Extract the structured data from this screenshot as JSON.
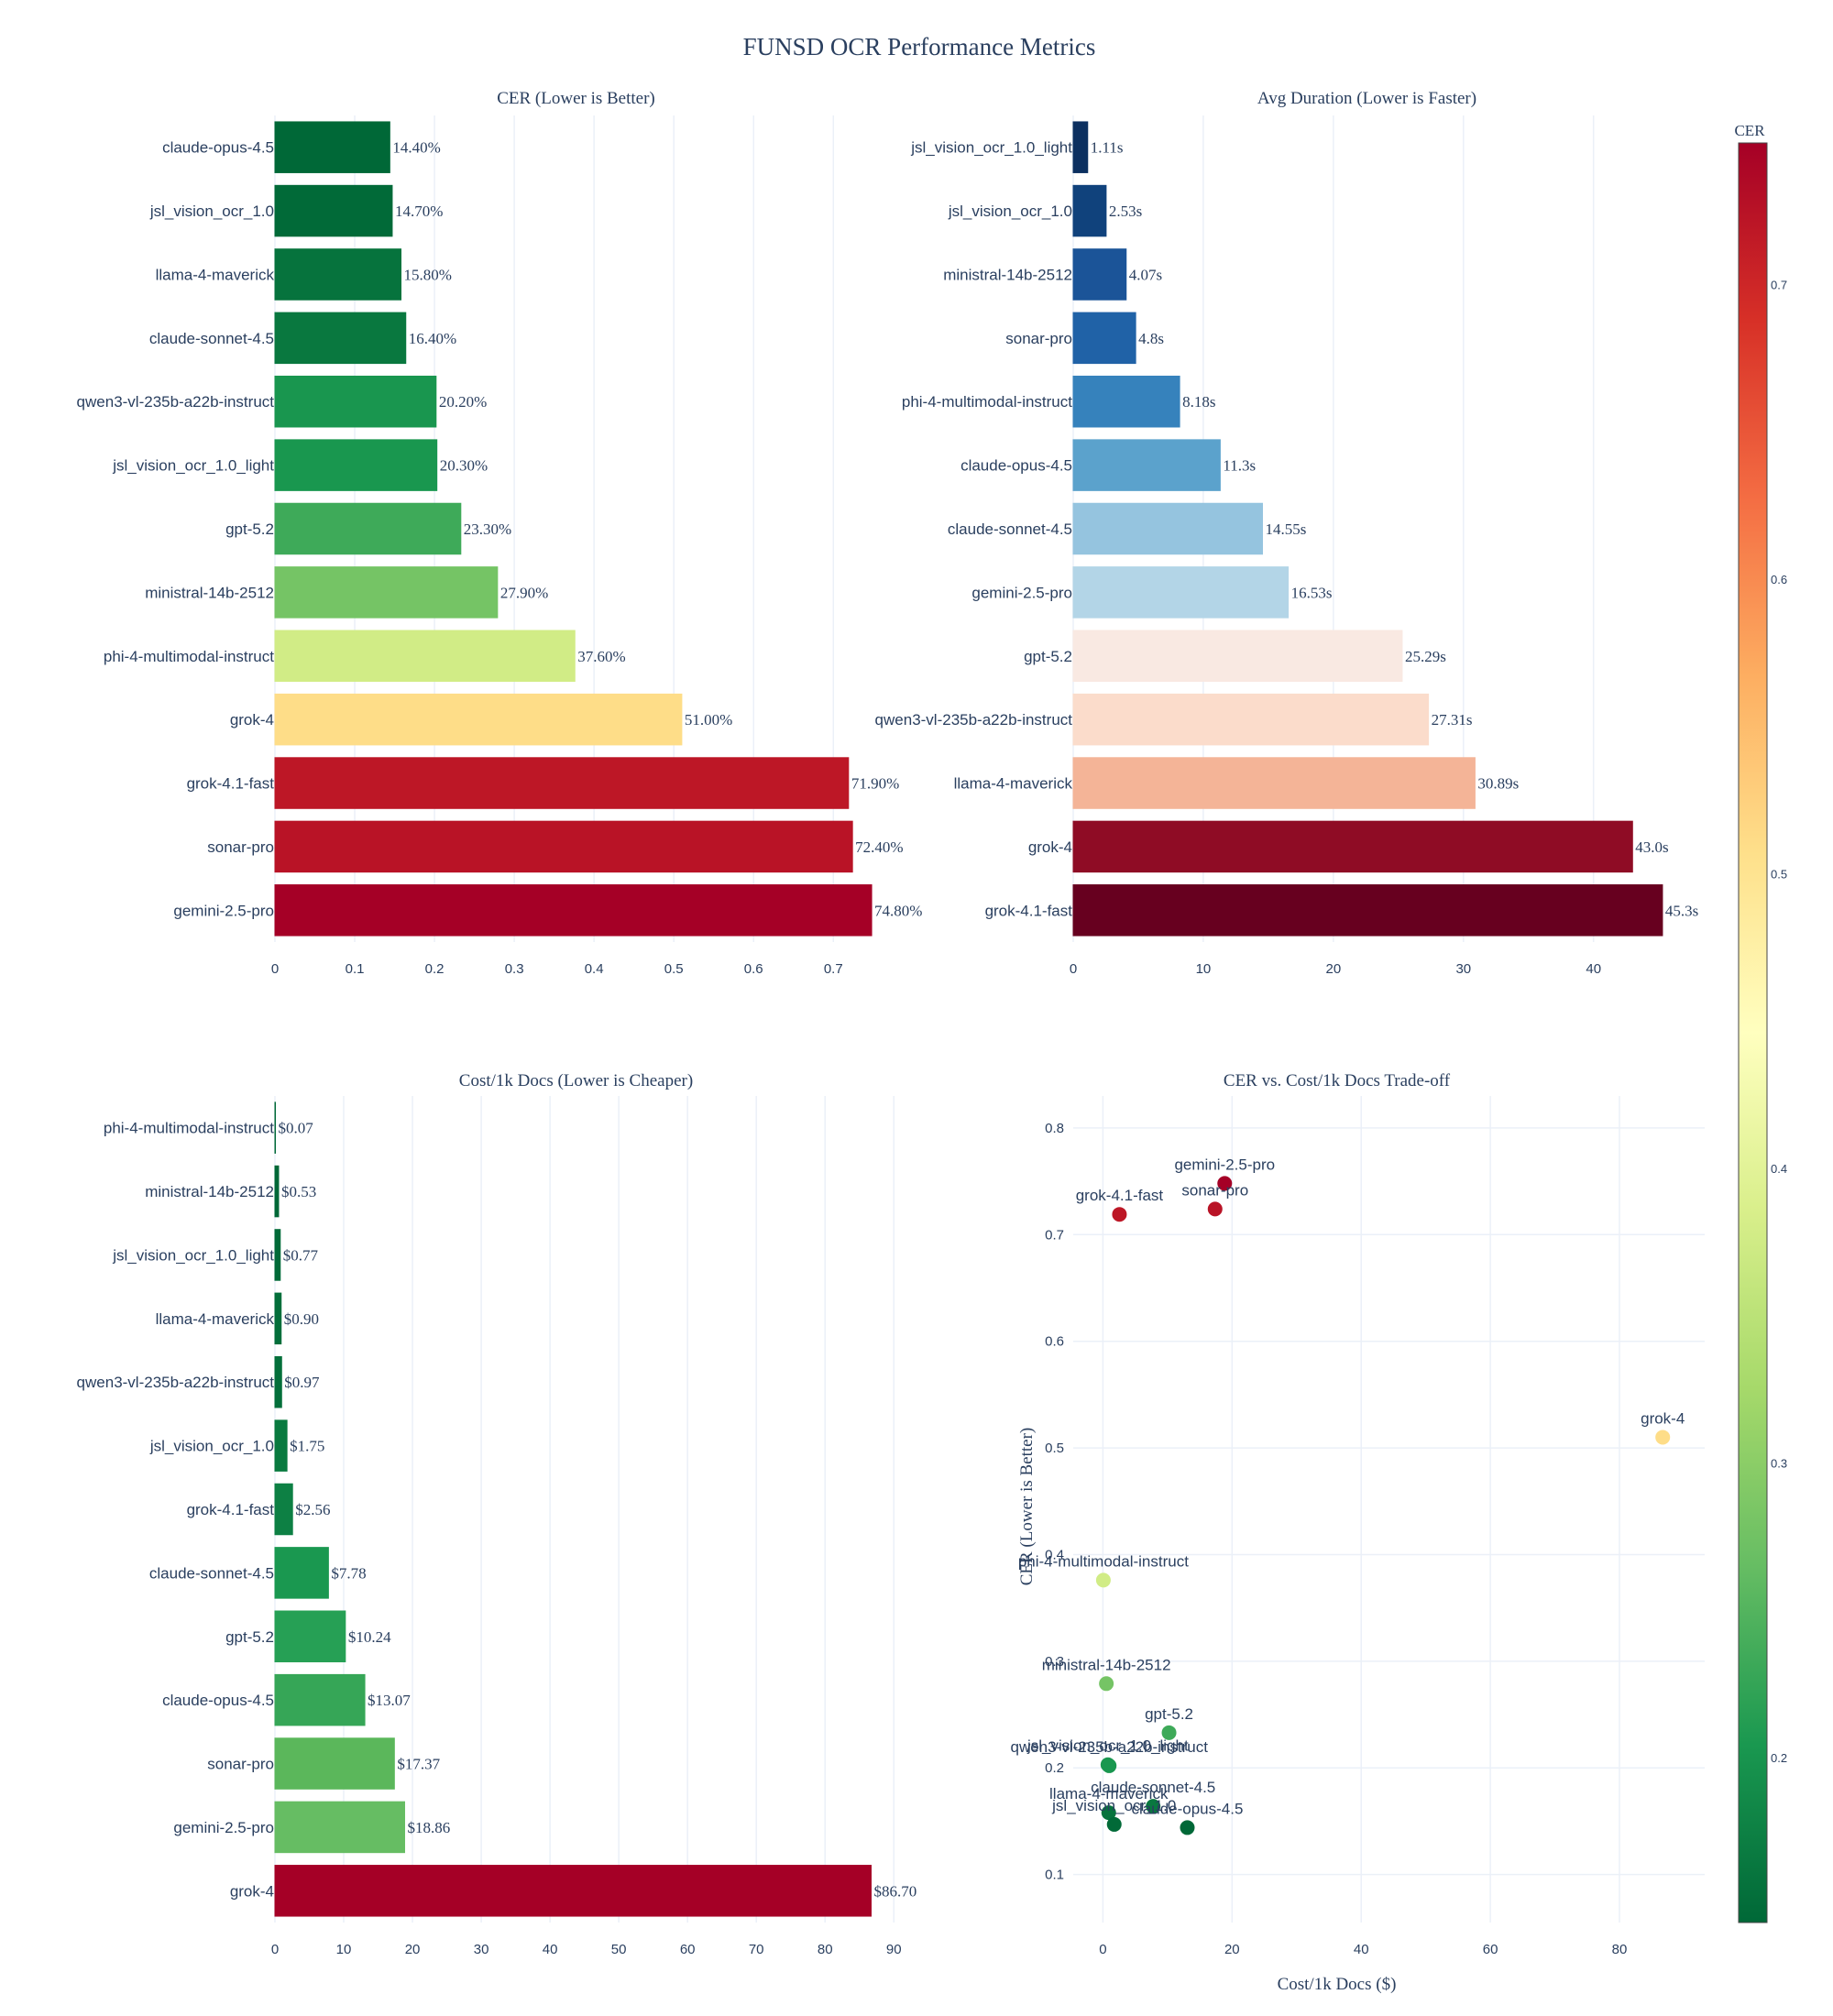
{
  "title": "FUNSD OCR Performance Metrics",
  "colorscale_note": "CER colors: RdYlGn reversed (green = low CER, red = high CER)",
  "chart_data": [
    {
      "id": "cer",
      "type": "bar",
      "orientation": "horizontal",
      "title": "CER (Lower is Better)",
      "xlabel": "",
      "ylabel": "",
      "xlim": [
        0,
        0.787
      ],
      "xticks": [
        0,
        0.1,
        0.2,
        0.3,
        0.4,
        0.5,
        0.6,
        0.7
      ],
      "xtick_labels": [
        "0",
        "0.1",
        "0.2",
        "0.3",
        "0.4",
        "0.5",
        "0.6",
        "0.7"
      ],
      "grid": true,
      "color_by": "cer",
      "categories": [
        "claude-opus-4.5",
        "jsl_vision_ocr_1.0",
        "llama-4-maverick",
        "claude-sonnet-4.5",
        "qwen3-vl-235b-a22b-instruct",
        "jsl_vision_ocr_1.0_light",
        "gpt-5.2",
        "ministral-14b-2512",
        "phi-4-multimodal-instruct",
        "grok-4",
        "grok-4.1-fast",
        "sonar-pro",
        "gemini-2.5-pro"
      ],
      "values": [
        0.144,
        0.147,
        0.158,
        0.164,
        0.202,
        0.203,
        0.233,
        0.279,
        0.376,
        0.51,
        0.719,
        0.724,
        0.748
      ],
      "labels": [
        "14.40%",
        "14.70%",
        "15.80%",
        "16.40%",
        "20.20%",
        "20.30%",
        "23.30%",
        "27.90%",
        "37.60%",
        "51.00%",
        "71.90%",
        "72.40%",
        "74.80%"
      ]
    },
    {
      "id": "duration",
      "type": "bar",
      "orientation": "horizontal",
      "title": "Avg Duration (Lower is Faster)",
      "xlabel": "",
      "ylabel": "",
      "xlim": [
        0,
        47.7
      ],
      "xticks": [
        0,
        10,
        20,
        30,
        40
      ],
      "xtick_labels": [
        "0",
        "10",
        "20",
        "30",
        "40"
      ],
      "grid": true,
      "color_by": "value (RdBu reversed)",
      "categories": [
        "jsl_vision_ocr_1.0_light",
        "jsl_vision_ocr_1.0",
        "ministral-14b-2512",
        "sonar-pro",
        "phi-4-multimodal-instruct",
        "claude-opus-4.5",
        "claude-sonnet-4.5",
        "gemini-2.5-pro",
        "gpt-5.2",
        "qwen3-vl-235b-a22b-instruct",
        "llama-4-maverick",
        "grok-4",
        "grok-4.1-fast"
      ],
      "values": [
        1.11,
        2.53,
        4.07,
        4.8,
        8.18,
        11.3,
        14.55,
        16.53,
        25.29,
        27.31,
        30.89,
        43.0,
        45.3
      ],
      "labels": [
        "1.11s",
        "2.53s",
        "4.07s",
        "4.8s",
        "8.18s",
        "11.3s",
        "14.55s",
        "16.53s",
        "25.29s",
        "27.31s",
        "30.89s",
        "43.0s",
        "45.3s"
      ],
      "colors": [
        "#0c3060",
        "#10427c",
        "#1b5498",
        "#2062a7",
        "#3682bc",
        "#5ba2cc",
        "#95c4df",
        "#b3d5e7",
        "#f9e9e2",
        "#fbdccb",
        "#f4b497",
        "#8f0c25",
        "#67001f"
      ]
    },
    {
      "id": "cost",
      "type": "bar",
      "orientation": "horizontal",
      "title": "Cost/1k Docs (Lower is Cheaper)",
      "xlabel": "",
      "ylabel": "",
      "xlim": [
        0,
        91.3
      ],
      "xticks": [
        0,
        10,
        20,
        30,
        40,
        50,
        60,
        70,
        80,
        90
      ],
      "xtick_labels": [
        "0",
        "10",
        "20",
        "30",
        "40",
        "50",
        "60",
        "70",
        "80",
        "90"
      ],
      "grid": true,
      "color_by": "value (RdYlGn reversed)",
      "categories": [
        "phi-4-multimodal-instruct",
        "ministral-14b-2512",
        "jsl_vision_ocr_1.0_light",
        "llama-4-maverick",
        "qwen3-vl-235b-a22b-instruct",
        "jsl_vision_ocr_1.0",
        "grok-4.1-fast",
        "claude-sonnet-4.5",
        "gpt-5.2",
        "claude-opus-4.5",
        "sonar-pro",
        "gemini-2.5-pro",
        "grok-4"
      ],
      "values": [
        0.07,
        0.53,
        0.77,
        0.9,
        0.97,
        1.75,
        2.56,
        7.78,
        10.24,
        13.07,
        17.37,
        18.86,
        86.7
      ],
      "labels": [
        "$0.07",
        "$0.53",
        "$0.77",
        "$0.90",
        "$0.97",
        "$1.75",
        "$2.56",
        "$7.78",
        "$10.24",
        "$13.07",
        "$17.37",
        "$18.86",
        "$86.70"
      ],
      "colors": [
        "#006837",
        "#006837",
        "#016a38",
        "#036e3a",
        "#046f3b",
        "#097a3f",
        "#0d8044",
        "#1a9850",
        "#26a055",
        "#36a657",
        "#5bb75b",
        "#66bd63",
        "#a50026"
      ]
    },
    {
      "id": "tradeoff",
      "type": "scatter",
      "title": "CER vs. Cost/1k Docs Trade-off",
      "xlabel": "Cost/1k Docs ($)",
      "ylabel": "CER (Lower is Better)",
      "xlim": [
        -4.6,
        93.2
      ],
      "ylim": [
        0.055,
        0.83
      ],
      "xticks": [
        0,
        20,
        40,
        60,
        80
      ],
      "xtick_labels": [
        "0",
        "20",
        "40",
        "60",
        "80"
      ],
      "yticks": [
        0.1,
        0.2,
        0.3,
        0.4,
        0.5,
        0.6,
        0.7,
        0.8
      ],
      "ytick_labels": [
        "0.1",
        "0.2",
        "0.3",
        "0.4",
        "0.5",
        "0.6",
        "0.7",
        "0.8"
      ],
      "grid": true,
      "color_by": "cer",
      "points": [
        {
          "name": "gemini-2.5-pro",
          "x": 18.86,
          "y": 0.748
        },
        {
          "name": "sonar-pro",
          "x": 17.37,
          "y": 0.724
        },
        {
          "name": "grok-4.1-fast",
          "x": 2.56,
          "y": 0.719
        },
        {
          "name": "grok-4",
          "x": 86.7,
          "y": 0.51
        },
        {
          "name": "phi-4-multimodal-instruct",
          "x": 0.07,
          "y": 0.376
        },
        {
          "name": "ministral-14b-2512",
          "x": 0.53,
          "y": 0.279
        },
        {
          "name": "gpt-5.2",
          "x": 10.24,
          "y": 0.233
        },
        {
          "name": "qwen3-vl-235b-a22b-instruct",
          "x": 0.97,
          "y": 0.202
        },
        {
          "name": "jsl_vision_ocr_1.0_light",
          "x": 0.77,
          "y": 0.203
        },
        {
          "name": "claude-sonnet-4.5",
          "x": 7.78,
          "y": 0.164
        },
        {
          "name": "llama-4-maverick",
          "x": 0.9,
          "y": 0.158
        },
        {
          "name": "jsl_vision_ocr_1.0",
          "x": 1.75,
          "y": 0.147
        },
        {
          "name": "claude-opus-4.5",
          "x": 13.07,
          "y": 0.144
        }
      ]
    }
  ],
  "colorbar": {
    "title": "CER",
    "range": [
      0.144,
      0.748
    ],
    "ticks": [
      0.2,
      0.3,
      0.4,
      0.5,
      0.6,
      0.7
    ],
    "tick_labels": [
      "0.2",
      "0.3",
      "0.4",
      "0.5",
      "0.6",
      "0.7"
    ],
    "scale": [
      "#006837",
      "#1a9850",
      "#66bd63",
      "#a6d96a",
      "#d9ef8b",
      "#ffffbf",
      "#fee08b",
      "#fdae61",
      "#f46d43",
      "#d73027",
      "#a50026"
    ]
  }
}
